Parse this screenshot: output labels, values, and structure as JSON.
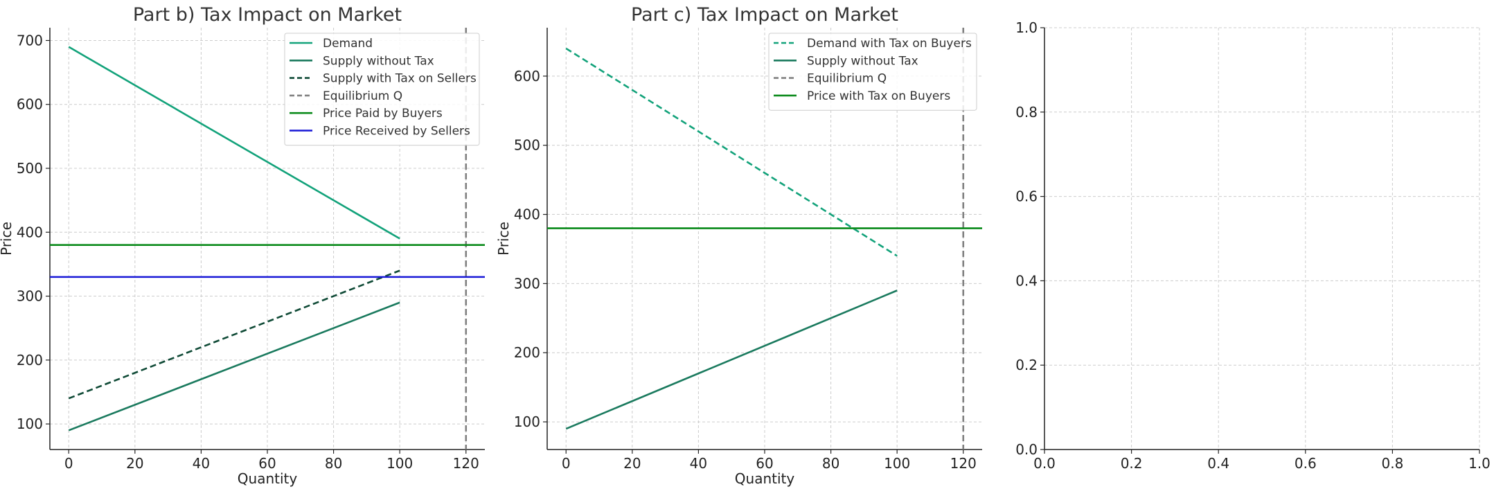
{
  "chart_data": [
    {
      "type": "line",
      "title": "Part b) Tax Impact on Market",
      "xlabel": "Quantity",
      "ylabel": "Price",
      "xlim": [
        -5.7,
        125.7
      ],
      "ylim": [
        60,
        720
      ],
      "xticks": [
        "0",
        "20",
        "40",
        "60",
        "80",
        "100",
        "120"
      ],
      "yticks": [
        "100",
        "200",
        "300",
        "400",
        "500",
        "600",
        "700"
      ],
      "grid": true,
      "legend_position": "top-right",
      "series": [
        {
          "name": "Demand",
          "kind": "line",
          "x": [
            0,
            100
          ],
          "y": [
            690,
            390
          ],
          "color": "#12a27a",
          "dash": "solid"
        },
        {
          "name": "Supply without Tax",
          "kind": "line",
          "x": [
            0,
            100
          ],
          "y": [
            90,
            290
          ],
          "color": "#1a7a5e",
          "dash": "solid"
        },
        {
          "name": "Supply with Tax on Sellers",
          "kind": "line",
          "x": [
            0,
            100
          ],
          "y": [
            140,
            340
          ],
          "color": "#0f4a36",
          "dash": "dashed"
        },
        {
          "name": "Equilibrium Q",
          "kind": "vline",
          "x": 120,
          "color": "#808080",
          "dash": "dashed"
        },
        {
          "name": "Price Paid by Buyers",
          "kind": "hline",
          "y": 380,
          "color": "#0a8a1a",
          "dash": "solid"
        },
        {
          "name": "Price Received by Sellers",
          "kind": "hline",
          "y": 330,
          "color": "#1717d6",
          "dash": "solid"
        }
      ]
    },
    {
      "type": "line",
      "title": "Part c) Tax Impact on Market",
      "xlabel": "Quantity",
      "ylabel": "Price",
      "xlim": [
        -5.7,
        125.7
      ],
      "ylim": [
        60,
        670
      ],
      "xticks": [
        "0",
        "20",
        "40",
        "60",
        "80",
        "100",
        "120"
      ],
      "yticks": [
        "100",
        "200",
        "300",
        "400",
        "500",
        "600"
      ],
      "grid": true,
      "legend_position": "top-right",
      "series": [
        {
          "name": "Demand with Tax on Buyers",
          "kind": "line",
          "x": [
            0,
            100
          ],
          "y": [
            640,
            340
          ],
          "color": "#12a27a",
          "dash": "dashed"
        },
        {
          "name": "Supply without Tax",
          "kind": "line",
          "x": [
            0,
            100
          ],
          "y": [
            90,
            290
          ],
          "color": "#1a7a5e",
          "dash": "solid"
        },
        {
          "name": "Equilibrium Q",
          "kind": "vline",
          "x": 120,
          "color": "#808080",
          "dash": "dashed"
        },
        {
          "name": "Price with Tax on Buyers",
          "kind": "hline",
          "y": 380,
          "color": "#0a8a1a",
          "dash": "solid"
        }
      ]
    },
    {
      "type": "line",
      "title": "",
      "xlabel": "",
      "ylabel": "",
      "xlim": [
        0,
        1
      ],
      "ylim": [
        0,
        1
      ],
      "xticks": [
        "0.0",
        "0.2",
        "0.4",
        "0.6",
        "0.8",
        "1.0"
      ],
      "yticks": [
        "0.0",
        "0.2",
        "0.4",
        "0.6",
        "0.8",
        "1.0"
      ],
      "grid": true,
      "series": []
    }
  ]
}
